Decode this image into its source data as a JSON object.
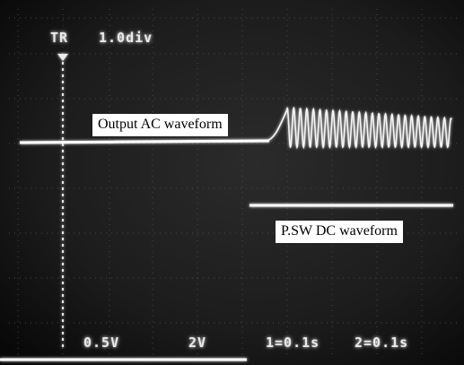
{
  "osd": {
    "trigger": "TR",
    "timebase": "1.0div",
    "ch1_scale": "0.5V",
    "ch2_scale": "2V",
    "ch1_time": "1=0.1s",
    "ch2_time": "2=0.1s"
  },
  "annotations": {
    "output_ac": "Output AC waveform",
    "psw_dc": "P.SW DC waveform"
  },
  "colors": {
    "screen_background": "#1a1a1a",
    "trace": "#ffffff",
    "graticule": "#5a5a5a"
  }
}
